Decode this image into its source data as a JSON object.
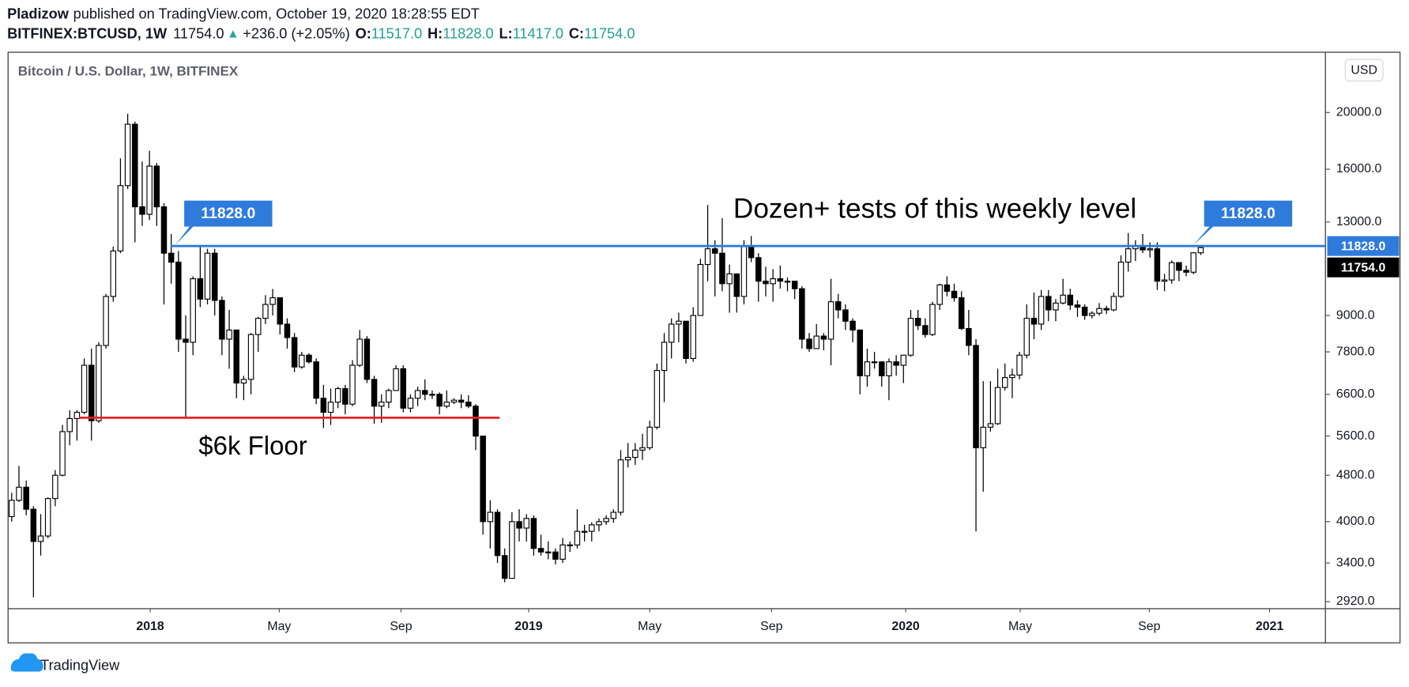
{
  "header": {
    "author": "Pladizow",
    "published": "published on TradingView.com, October 19, 2020 18:28:55 EDT",
    "symbol": "BITFINEX:BTCUSD, 1W",
    "last": "11754.0",
    "arrow": "▲",
    "change": "+236.0 (+2.05%)",
    "ohlc": [
      {
        "label": "O:",
        "value": "11517.0"
      },
      {
        "label": "H:",
        "value": "11828.0"
      },
      {
        "label": "L:",
        "value": "11417.0"
      },
      {
        "label": "C:",
        "value": "11754.0"
      }
    ]
  },
  "footer": {
    "brand": "TradingView"
  },
  "chart_data": {
    "type": "candlestick",
    "title": "Bitcoin / U.S. Dollar, 1W, BITFINEX",
    "currency": "USD",
    "log_scale": true,
    "grid": false,
    "up_color": "#ffffff",
    "down_color": "#000000",
    "wick_color": "#000000",
    "open": [
      4080,
      4350,
      4580,
      4200,
      3700,
      3780,
      4380,
      4800,
      5700,
      6000,
      6150,
      7400,
      5950,
      8000,
      9700,
      11600,
      15000,
      19100,
      13800,
      13400,
      16200,
      13800,
      11500,
      11100,
      8200,
      8100,
      10400,
      9600,
      11500,
      9550,
      8200,
      8500,
      6900,
      7000,
      8350,
      8900,
      9400,
      9650,
      8700,
      8250,
      7350,
      7700,
      7500,
      6500,
      6150,
      6400,
      6750,
      6350,
      7400,
      8200,
      7000,
      6300,
      6400,
      6700,
      7300,
      6250,
      6500,
      6700,
      6600,
      6600,
      6300,
      6400,
      6450,
      6400,
      6300,
      5600,
      4000,
      4150,
      3500,
      3200,
      4000,
      3900,
      4050,
      3600,
      3550,
      3550,
      3450,
      3650,
      3650,
      3850,
      3850,
      3950,
      4000,
      4050,
      4150,
      5100,
      5150,
      5300,
      5350,
      5800,
      7250,
      8100,
      8700,
      8800,
      7600,
      9000,
      11000,
      11700,
      11500,
      10200,
      10600,
      9700,
      11800,
      11300,
      10300,
      10200,
      10400,
      10300,
      10300,
      10000,
      8200,
      7900,
      8300,
      8200,
      9500,
      9200,
      8800,
      8500,
      7100,
      7500,
      7500,
      7100,
      7500,
      7400,
      7700,
      8900,
      8650,
      8350,
      9400,
      10150,
      9900,
      9650,
      8550,
      8000,
      5350,
      5800,
      5880,
      6780,
      7050,
      7120,
      7700,
      8900,
      8700,
      9700,
      9200,
      9450,
      9750,
      9380,
      9300,
      9000,
      9080,
      9250,
      9200,
      9700,
      11100,
      11700,
      11850,
      11650,
      11700,
      10300,
      10350,
      11080,
      10750,
      10670,
      11517
    ],
    "high": [
      4480,
      4980,
      4700,
      4250,
      4120,
      4400,
      4900,
      5850,
      6200,
      6200,
      7600,
      7900,
      8100,
      9800,
      11800,
      16700,
      19900,
      19300,
      16500,
      17200,
      16400,
      14000,
      12400,
      11600,
      9000,
      10500,
      11800,
      11700,
      11700,
      9700,
      9200,
      8500,
      7100,
      8400,
      8950,
      9750,
      9990,
      9650,
      8900,
      8400,
      7800,
      7760,
      7600,
      6850,
      6750,
      6800,
      6850,
      7550,
      8500,
      8300,
      7100,
      6600,
      6750,
      7400,
      7400,
      6600,
      6800,
      7000,
      6700,
      6650,
      6700,
      6500,
      6600,
      6580,
      6350,
      5600,
      4350,
      4200,
      3600,
      4150,
      4200,
      4120,
      4100,
      3800,
      3700,
      3600,
      3750,
      3700,
      4200,
      3950,
      3990,
      4050,
      4100,
      4200,
      5300,
      5450,
      5450,
      5650,
      5950,
      7450,
      8400,
      8900,
      9100,
      8800,
      9300,
      11250,
      13900,
      12100,
      13200,
      11000,
      10600,
      12100,
      12300,
      11500,
      10900,
      10800,
      10950,
      10450,
      10300,
      10100,
      8400,
      8700,
      8400,
      10400,
      9800,
      9400,
      8900,
      8500,
      7900,
      7800,
      7500,
      7600,
      7700,
      7700,
      9200,
      9200,
      8900,
      9500,
      10200,
      10500,
      10200,
      9900,
      9200,
      8200,
      6950,
      6950,
      7300,
      7450,
      7300,
      7800,
      9400,
      9850,
      9950,
      9950,
      9600,
      10400,
      10000,
      9550,
      9400,
      9150,
      9450,
      9350,
      9850,
      11400,
      12450,
      12100,
      12400,
      12000,
      12000,
      10600,
      11180,
      11100,
      10950,
      11550,
      11828
    ],
    "low": [
      4000,
      4320,
      4100,
      2970,
      3500,
      3750,
      4250,
      4780,
      5400,
      5500,
      6100,
      5500,
      5900,
      7900,
      9500,
      11500,
      14800,
      12000,
      12800,
      13100,
      12800,
      9400,
      10200,
      7800,
      6000,
      7700,
      9300,
      9400,
      9000,
      7700,
      7300,
      6500,
      6450,
      6600,
      7800,
      8700,
      9000,
      8350,
      7900,
      7200,
      7300,
      7450,
      6350,
      5780,
      5850,
      6250,
      6100,
      6300,
      7350,
      6900,
      5880,
      5900,
      6250,
      6700,
      6150,
      6150,
      6300,
      6450,
      6480,
      6100,
      6250,
      6350,
      6250,
      6250,
      5300,
      3800,
      3600,
      3400,
      3150,
      3200,
      3700,
      3700,
      3500,
      3500,
      3450,
      3380,
      3400,
      3550,
      3600,
      3700,
      3700,
      3850,
      3950,
      3980,
      4100,
      4950,
      5000,
      5100,
      5300,
      5750,
      6400,
      7600,
      8100,
      7450,
      7500,
      9000,
      10300,
      9700,
      9900,
      9100,
      9100,
      9400,
      11100,
      9500,
      9700,
      9500,
      10000,
      9900,
      9600,
      7900,
      7800,
      7900,
      7850,
      7400,
      8900,
      8500,
      8100,
      6600,
      6800,
      7300,
      6800,
      6450,
      7100,
      6900,
      7650,
      8500,
      8250,
      8300,
      9200,
      9700,
      9500,
      8500,
      7700,
      3850,
      4500,
      5700,
      5850,
      6700,
      6500,
      7000,
      7600,
      8200,
      8500,
      8800,
      8800,
      9400,
      9200,
      8950,
      8850,
      8900,
      9000,
      9050,
      9150,
      9650,
      10700,
      11150,
      11500,
      11300,
      9950,
      9900,
      10200,
      10300,
      10500,
      10580,
      11417
    ],
    "close": [
      4350,
      4580,
      4200,
      3700,
      3780,
      4380,
      4800,
      5700,
      6000,
      6150,
      7400,
      5950,
      8000,
      9700,
      11600,
      15000,
      19100,
      13800,
      13400,
      16200,
      13800,
      11500,
      11100,
      8200,
      8100,
      10400,
      9600,
      11500,
      9550,
      8200,
      8500,
      6900,
      7000,
      8350,
      8900,
      9400,
      9650,
      8700,
      8250,
      7350,
      7700,
      7500,
      6500,
      6150,
      6400,
      6750,
      6350,
      7400,
      8200,
      7000,
      6300,
      6400,
      6700,
      7300,
      6250,
      6500,
      6700,
      6600,
      6600,
      6300,
      6400,
      6450,
      6400,
      6300,
      5600,
      4000,
      4150,
      3500,
      3200,
      4000,
      3900,
      4050,
      3600,
      3550,
      3550,
      3450,
      3650,
      3650,
      3850,
      3850,
      3950,
      4000,
      4050,
      4150,
      5100,
      5150,
      5300,
      5350,
      5800,
      7250,
      8100,
      8700,
      8800,
      7600,
      9000,
      11000,
      11700,
      11500,
      10200,
      10600,
      9700,
      11800,
      11300,
      10300,
      10200,
      10400,
      10300,
      10300,
      10000,
      8200,
      7900,
      8300,
      8200,
      9500,
      9200,
      8800,
      8500,
      7100,
      7500,
      7500,
      7100,
      7500,
      7400,
      7700,
      8900,
      8650,
      8350,
      9400,
      10150,
      9900,
      9650,
      8550,
      8000,
      5350,
      5800,
      5880,
      6780,
      7050,
      7120,
      7700,
      8900,
      8700,
      9700,
      9200,
      9450,
      9750,
      9380,
      9300,
      9000,
      9080,
      9250,
      9200,
      9700,
      11100,
      11700,
      11850,
      11650,
      11700,
      10300,
      10350,
      11080,
      10750,
      10670,
      11517,
      11754
    ],
    "xlim": [
      -0.5,
      181.2
    ],
    "xticks": [
      {
        "value": 19.1,
        "label": "2018"
      },
      {
        "value": 36.9,
        "label": "May"
      },
      {
        "value": 53.7,
        "label": "Sep"
      },
      {
        "value": 71.3,
        "label": "2019"
      },
      {
        "value": 88.0,
        "label": "May"
      },
      {
        "value": 104.8,
        "label": "Sep"
      },
      {
        "value": 123.3,
        "label": "2020"
      },
      {
        "value": 139.1,
        "label": "May"
      },
      {
        "value": 156.9,
        "label": "Sep"
      },
      {
        "value": 173.5,
        "label": "2021"
      }
    ],
    "ylim": [
      2840,
      25350
    ],
    "yticks": [
      {
        "value": 2920,
        "label": "2920.0"
      },
      {
        "value": 3400,
        "label": "3400.0"
      },
      {
        "value": 4000,
        "label": "4000.0"
      },
      {
        "value": 4800,
        "label": "4800.0"
      },
      {
        "value": 5600,
        "label": "5600.0"
      },
      {
        "value": 6600,
        "label": "6600.0"
      },
      {
        "value": 7800,
        "label": "7800.0"
      },
      {
        "value": 9000,
        "label": "9000.0"
      },
      {
        "value": 13000,
        "label": "13000.0"
      },
      {
        "value": 16000,
        "label": "16000.0"
      },
      {
        "value": 20000,
        "label": "20000.0"
      }
    ],
    "levels": [
      {
        "value": 11828,
        "label": "11828.0",
        "color": "#2f7bdc"
      },
      {
        "value": 6020,
        "color": "#e8212b"
      }
    ],
    "annotations": [
      "Dozen+ tests of this weekly level",
      "$6k Floor"
    ]
  }
}
